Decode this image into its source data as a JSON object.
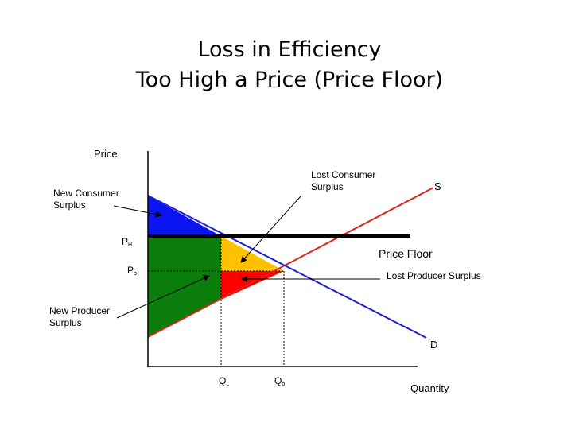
{
  "title": {
    "line1": "Loss in Efficiency",
    "line2": "Too High a Price (Price Floor)"
  },
  "axes": {
    "y_label": "Price",
    "x_label": "Quantity"
  },
  "curves": {
    "supply_label": "S",
    "demand_label": "D",
    "price_floor_label": "Price Floor",
    "supply_color": "#d9241c",
    "demand_color": "#1f1fd6",
    "floor_color": "#000000"
  },
  "ticks": {
    "ph_main": "P",
    "ph_sub": "H",
    "po_main": "P",
    "po_sub": "o",
    "ql_main": "Q",
    "ql_sub": "L",
    "qo_main": "Q",
    "qo_sub": "o"
  },
  "annotations": {
    "new_consumer_surplus": [
      "New Consumer",
      "Surplus"
    ],
    "new_producer_surplus": [
      "New Producer",
      "Surplus"
    ],
    "lost_consumer_surplus": [
      "Lost Consumer",
      "Surplus"
    ],
    "lost_producer_surplus": "Lost Producer Surplus"
  },
  "areas": {
    "new_consumer_surplus_color": "#0a14f0",
    "new_producer_surplus_color": "#0a7d0a",
    "lost_consumer_surplus_color": "#ffc000",
    "lost_producer_surplus_color": "#ff0000"
  }
}
